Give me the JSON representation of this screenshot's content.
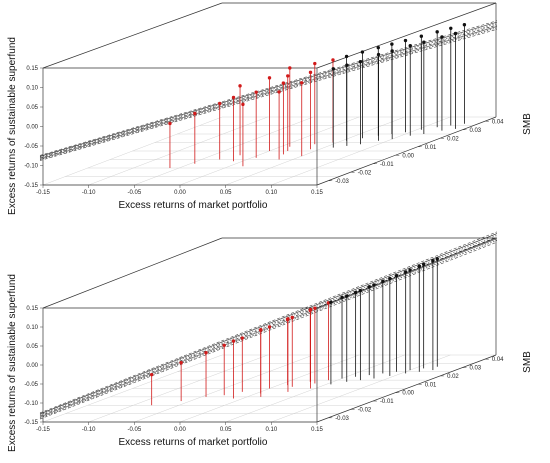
{
  "chart_data": [
    {
      "type": "scatter3d",
      "x_label": "Excess returns of market portfolio",
      "y_label": "Excess returns of sustainable superfund",
      "z_label": "SMB",
      "x_ticks": [
        "-0.15",
        "-0.10",
        "-0.05",
        "0.00",
        "0.05",
        "0.10",
        "0.15"
      ],
      "z_axis_ticks": [
        "-0.15",
        "-0.10",
        "-0.05",
        "0.00",
        "0.05",
        "0.10",
        "0.15"
      ],
      "depth_ticks": [
        "-0.03",
        "-0.02",
        "-0.01",
        "0.00",
        "0.01",
        "0.02",
        "0.03",
        "0.04"
      ],
      "xlim": [
        -0.15,
        0.15
      ],
      "ylim": [
        -0.15,
        0.15
      ],
      "depth_lim": [
        -0.04,
        0.04
      ],
      "regression_lines": 7,
      "points": [
        {
          "x": -0.06,
          "y": -0.035,
          "d": -0.02,
          "c": "red"
        },
        {
          "x": -0.045,
          "y": -0.02,
          "d": -0.015,
          "c": "red"
        },
        {
          "x": -0.03,
          "y": -0.005,
          "d": -0.01,
          "c": "red"
        },
        {
          "x": -0.02,
          "y": 0.03,
          "d": -0.005,
          "c": "red"
        },
        {
          "x": -0.01,
          "y": 0.015,
          "d": -0.012,
          "c": "red"
        },
        {
          "x": 0.0,
          "y": 0.04,
          "d": 0.0,
          "c": "red"
        },
        {
          "x": 0.005,
          "y": 0.02,
          "d": -0.008,
          "c": "red"
        },
        {
          "x": 0.01,
          "y": 0.055,
          "d": 0.005,
          "c": "red"
        },
        {
          "x": 0.015,
          "y": 0.01,
          "d": -0.018,
          "c": "red"
        },
        {
          "x": 0.02,
          "y": 0.045,
          "d": 0.0,
          "c": "red"
        },
        {
          "x": 0.025,
          "y": 0.035,
          "d": -0.004,
          "c": "red"
        },
        {
          "x": 0.03,
          "y": 0.06,
          "d": 0.008,
          "c": "red"
        },
        {
          "x": 0.035,
          "y": 0.025,
          "d": -0.01,
          "c": "red"
        },
        {
          "x": 0.04,
          "y": 0.05,
          "d": 0.002,
          "c": "red"
        },
        {
          "x": 0.045,
          "y": 0.065,
          "d": 0.01,
          "c": "red"
        },
        {
          "x": 0.05,
          "y": 0.04,
          "d": -0.006,
          "c": "red"
        },
        {
          "x": 0.055,
          "y": 0.07,
          "d": 0.012,
          "c": "black"
        },
        {
          "x": 0.06,
          "y": 0.055,
          "d": 0.004,
          "c": "black"
        },
        {
          "x": 0.065,
          "y": 0.075,
          "d": 0.015,
          "c": "black"
        },
        {
          "x": 0.07,
          "y": 0.06,
          "d": 0.006,
          "c": "black"
        },
        {
          "x": 0.075,
          "y": 0.08,
          "d": 0.018,
          "c": "black"
        },
        {
          "x": 0.08,
          "y": 0.065,
          "d": 0.008,
          "c": "black"
        },
        {
          "x": 0.085,
          "y": 0.085,
          "d": 0.02,
          "c": "black"
        },
        {
          "x": 0.09,
          "y": 0.075,
          "d": 0.012,
          "c": "black"
        },
        {
          "x": 0.095,
          "y": 0.09,
          "d": 0.022,
          "c": "black"
        },
        {
          "x": 0.1,
          "y": 0.08,
          "d": 0.014,
          "c": "black"
        },
        {
          "x": 0.105,
          "y": 0.095,
          "d": 0.025,
          "c": "black"
        },
        {
          "x": 0.11,
          "y": 0.085,
          "d": 0.018,
          "c": "black"
        },
        {
          "x": 0.115,
          "y": 0.1,
          "d": 0.028,
          "c": "black"
        },
        {
          "x": 0.12,
          "y": 0.09,
          "d": 0.02,
          "c": "black"
        },
        {
          "x": 0.125,
          "y": 0.105,
          "d": 0.03,
          "c": "black"
        },
        {
          "x": 0.13,
          "y": 0.095,
          "d": 0.024,
          "c": "black"
        },
        {
          "x": 0.135,
          "y": 0.11,
          "d": 0.032,
          "c": "black"
        },
        {
          "x": 0.14,
          "y": 0.1,
          "d": 0.026,
          "c": "black"
        }
      ]
    },
    {
      "type": "scatter3d",
      "x_label": "Excess returns of market portfolio",
      "y_label": "Excess returns of sustainable superfund",
      "z_label": "SMB",
      "x_ticks": [
        "-0.15",
        "-0.10",
        "-0.05",
        "0.00",
        "0.05",
        "0.10",
        "0.15"
      ],
      "z_axis_ticks": [
        "-0.15",
        "-0.10",
        "-0.05",
        "0.00",
        "0.05",
        "0.10",
        "0.15"
      ],
      "depth_ticks": [
        "-0.03",
        "-0.02",
        "-0.01",
        "0.00",
        "0.01",
        "0.02",
        "0.03",
        "0.04"
      ],
      "xlim": [
        -0.15,
        0.15
      ],
      "ylim": [
        -0.15,
        0.15
      ],
      "depth_lim": [
        -0.04,
        0.04
      ],
      "regression_lines": 7,
      "points": [
        {
          "x": -0.08,
          "y": -0.07,
          "d": -0.02,
          "c": "red"
        },
        {
          "x": -0.06,
          "y": -0.05,
          "d": -0.015,
          "c": "red"
        },
        {
          "x": -0.045,
          "y": -0.035,
          "d": -0.01,
          "c": "red"
        },
        {
          "x": -0.03,
          "y": -0.02,
          "d": -0.008,
          "c": "red"
        },
        {
          "x": -0.02,
          "y": -0.01,
          "d": -0.004,
          "c": "red"
        },
        {
          "x": -0.01,
          "y": 0.0,
          "d": -0.012,
          "c": "red"
        },
        {
          "x": 0.0,
          "y": 0.01,
          "d": 0.0,
          "c": "red"
        },
        {
          "x": 0.005,
          "y": 0.015,
          "d": -0.006,
          "c": "red"
        },
        {
          "x": 0.01,
          "y": 0.02,
          "d": 0.004,
          "c": "red"
        },
        {
          "x": 0.015,
          "y": 0.025,
          "d": -0.01,
          "c": "red"
        },
        {
          "x": 0.02,
          "y": 0.03,
          "d": 0.002,
          "c": "red"
        },
        {
          "x": 0.025,
          "y": 0.035,
          "d": 0.008,
          "c": "red"
        },
        {
          "x": 0.03,
          "y": 0.04,
          "d": -0.004,
          "c": "red"
        },
        {
          "x": 0.035,
          "y": 0.045,
          "d": 0.006,
          "c": "red"
        },
        {
          "x": 0.04,
          "y": 0.05,
          "d": 0.01,
          "c": "red"
        },
        {
          "x": 0.045,
          "y": 0.055,
          "d": 0.0,
          "c": "red"
        },
        {
          "x": 0.05,
          "y": 0.06,
          "d": 0.012,
          "c": "black"
        },
        {
          "x": 0.055,
          "y": 0.063,
          "d": 0.005,
          "c": "black"
        },
        {
          "x": 0.06,
          "y": 0.068,
          "d": 0.014,
          "c": "black"
        },
        {
          "x": 0.065,
          "y": 0.072,
          "d": 0.008,
          "c": "black"
        },
        {
          "x": 0.07,
          "y": 0.078,
          "d": 0.016,
          "c": "black"
        },
        {
          "x": 0.075,
          "y": 0.082,
          "d": 0.01,
          "c": "black"
        },
        {
          "x": 0.08,
          "y": 0.088,
          "d": 0.018,
          "c": "black"
        },
        {
          "x": 0.085,
          "y": 0.092,
          "d": 0.012,
          "c": "black"
        },
        {
          "x": 0.09,
          "y": 0.098,
          "d": 0.02,
          "c": "black"
        },
        {
          "x": 0.095,
          "y": 0.102,
          "d": 0.015,
          "c": "black"
        },
        {
          "x": 0.1,
          "y": 0.108,
          "d": 0.022,
          "c": "black"
        },
        {
          "x": 0.105,
          "y": 0.112,
          "d": 0.018,
          "c": "black"
        },
        {
          "x": 0.11,
          "y": 0.118,
          "d": 0.024,
          "c": "black"
        },
        {
          "x": 0.115,
          "y": 0.122,
          "d": 0.02,
          "c": "black"
        },
        {
          "x": 0.12,
          "y": 0.128,
          "d": 0.026,
          "c": "black"
        },
        {
          "x": 0.125,
          "y": 0.132,
          "d": 0.022,
          "c": "black"
        }
      ]
    }
  ]
}
